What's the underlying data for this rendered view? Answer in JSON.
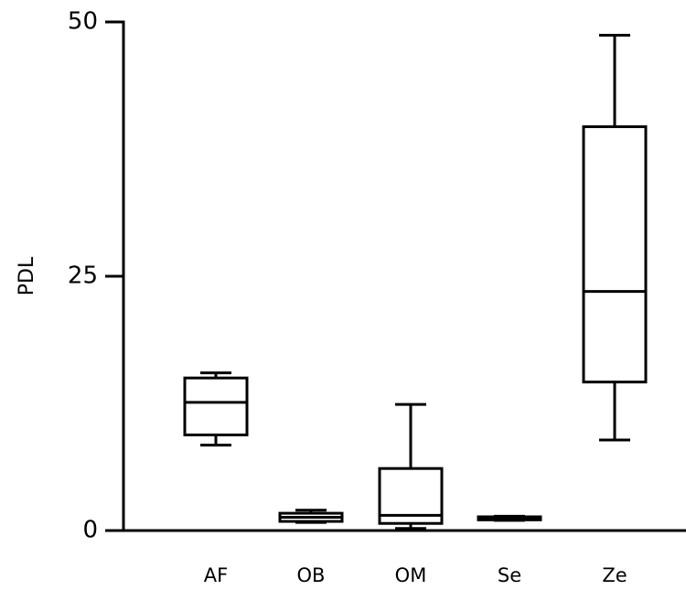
{
  "chart_data": {
    "type": "box",
    "title": "",
    "xlabel": "",
    "ylabel": "PDL",
    "ylim": [
      0,
      50
    ],
    "yticks": [
      0,
      25,
      50
    ],
    "grid": false,
    "categories": [
      "AF",
      "OB",
      "OM",
      "Se",
      "Ze"
    ],
    "boxes": [
      {
        "category": "AF",
        "min": 8.4,
        "q1": 9.4,
        "median": 12.6,
        "q3": 15.0,
        "max": 15.5
      },
      {
        "category": "OB",
        "min": 0.8,
        "q1": 0.9,
        "median": 1.3,
        "q3": 1.7,
        "max": 2.0
      },
      {
        "category": "OM",
        "min": 0.2,
        "q1": 0.7,
        "median": 1.5,
        "q3": 6.1,
        "max": 12.4
      },
      {
        "category": "Se",
        "min": 1.0,
        "q1": 1.05,
        "median": 1.2,
        "q3": 1.35,
        "max": 1.4
      },
      {
        "category": "Ze",
        "min": 8.9,
        "q1": 14.6,
        "median": 23.5,
        "q3": 39.7,
        "max": 48.7
      }
    ],
    "color": "#000000"
  }
}
